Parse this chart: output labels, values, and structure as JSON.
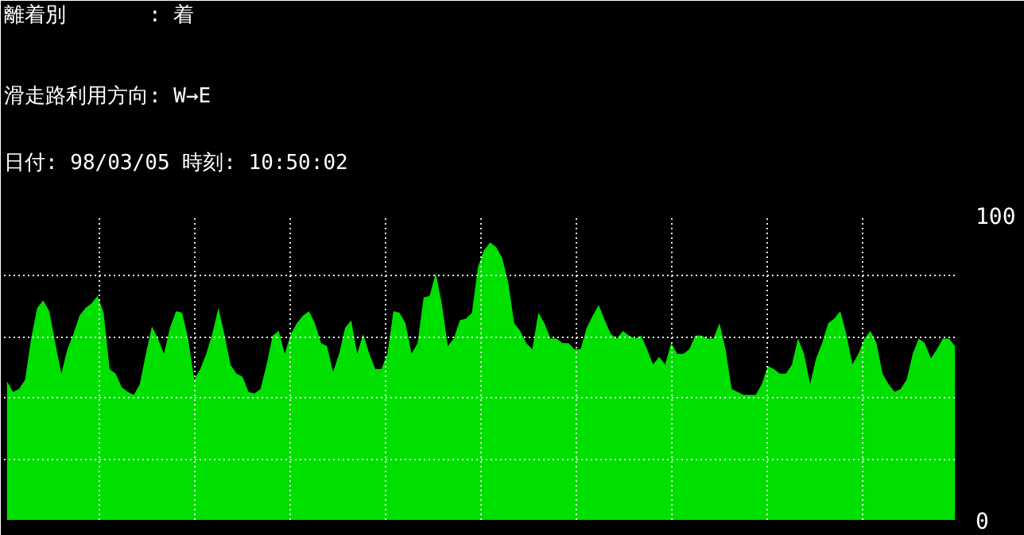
{
  "chart_data": {
    "type": "area",
    "title": "離着別　　　　: 着",
    "annotations": [
      "滑走路利用方向: W→E",
      "日付: 98/03/05  時刻: 10:50:02"
    ],
    "categories": [
      null,
      null,
      null,
      null,
      null,
      null,
      null,
      null,
      null,
      null,
      null,
      null,
      null,
      null,
      null,
      null,
      null,
      null,
      null,
      null,
      null,
      null,
      null,
      null,
      null,
      null,
      null,
      null,
      null,
      null,
      null,
      null,
      null,
      null,
      null,
      null,
      null,
      null,
      null,
      null,
      null,
      null,
      null,
      null,
      null,
      null,
      null,
      null,
      null,
      null,
      null,
      null,
      null,
      null,
      null,
      null,
      null,
      null,
      null,
      null,
      null,
      null,
      null,
      null,
      null,
      null,
      null,
      null,
      null,
      null,
      null,
      null,
      null,
      null,
      null,
      null,
      null,
      null,
      null,
      null,
      null,
      null,
      null,
      null,
      null,
      null,
      null,
      null,
      null,
      null,
      null,
      null,
      null,
      null,
      null,
      null,
      null,
      null,
      null,
      null,
      null,
      null,
      null,
      null,
      null,
      null,
      null,
      null,
      null,
      null,
      null,
      null,
      null,
      null,
      null,
      null,
      null,
      null,
      null,
      null,
      null,
      null,
      null,
      null,
      null,
      null,
      null,
      null,
      null,
      null,
      null,
      null,
      null,
      null,
      null,
      null,
      null,
      null,
      null,
      null,
      null,
      null,
      null,
      null,
      null,
      null,
      null,
      null,
      null,
      null,
      null,
      null,
      null,
      null,
      null,
      null,
      null,
      null
    ],
    "series": [
      {
        "color": "#00e000",
        "values": [
          45.5,
          42,
          43,
          46,
          59.5,
          69.5,
          72,
          68.5,
          58,
          48,
          56,
          61,
          67,
          69.5,
          71,
          73.5,
          68,
          49.5,
          48,
          43.5,
          42,
          41,
          44.5,
          54.5,
          63.5,
          59.5,
          54.5,
          63,
          68.5,
          68,
          59.5,
          46,
          49.5,
          54.5,
          61,
          69.5,
          61,
          51,
          48,
          47,
          42,
          41.5,
          43,
          51,
          60.5,
          62,
          54.5,
          61,
          64.5,
          67,
          68.5,
          64.5,
          58,
          57,
          48.5,
          54.5,
          63,
          65.5,
          54.5,
          61,
          54.5,
          49.5,
          49.5,
          54.5,
          68.5,
          68,
          64.5,
          54.5,
          58,
          73,
          73.5,
          81,
          71,
          57,
          59.5,
          65.5,
          66,
          68,
          83,
          88.5,
          91,
          89.5,
          86,
          78,
          64.5,
          62,
          58,
          56,
          68,
          64.5,
          59.5,
          59.5,
          58,
          58,
          56,
          56,
          63,
          67,
          70.5,
          65.5,
          61,
          59.5,
          62,
          60.5,
          59.5,
          60.5,
          56,
          51,
          53.5,
          51,
          58,
          54.5,
          54.5,
          56,
          60.5,
          60.5,
          59.5,
          59.5,
          64.5,
          56,
          43,
          42,
          41,
          41,
          41,
          44.5,
          50.5,
          49.5,
          48,
          48,
          51,
          59.5,
          54.5,
          44.5,
          53,
          58,
          64.5,
          66,
          68.5,
          61,
          51,
          54.5,
          59.5,
          62,
          58,
          48,
          44.5,
          42,
          43,
          46,
          54.5,
          59.5,
          58,
          53,
          56,
          59.5,
          59.5,
          57
        ]
      }
    ],
    "ylim": [
      0,
      100
    ],
    "yticks": [
      0,
      {
        "value": 20,
        "label": null
      },
      {
        "value": 40,
        "label": null
      },
      {
        "value": 60,
        "label": null
      },
      {
        "value": 80,
        "label": null
      },
      100
    ],
    "grid": true,
    "tick_labels": "y"
  }
}
